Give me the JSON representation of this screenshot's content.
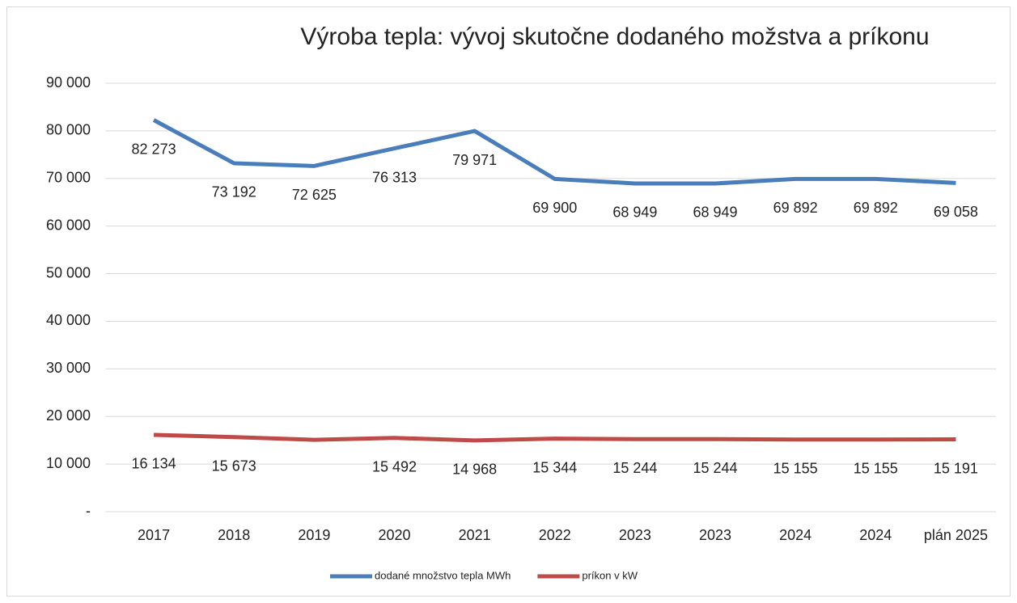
{
  "chart_data": {
    "type": "line",
    "title": "Výroba tepla: vývoj skutočne dodaného možstva a príkonu",
    "categories": [
      "2017",
      "2018",
      "2019",
      "2020",
      "2021",
      "2022",
      "2023",
      "2023",
      "2024",
      "2024",
      "plán 2025"
    ],
    "series": [
      {
        "name": "dodané množstvo tepla MWh",
        "color": "#4a7ebb",
        "values": [
          82273,
          73192,
          72625,
          76313,
          79971,
          69900,
          68949,
          68949,
          69892,
          69892,
          69058
        ],
        "value_labels": [
          "82 273",
          "73 192",
          "72 625",
          "76 313",
          "79 971",
          "69 900",
          "68 949",
          "68 949",
          "69 892",
          "69 892",
          "69 058"
        ]
      },
      {
        "name": "príkon v kW",
        "color": "#be4b48",
        "values": [
          16134,
          15673,
          15100,
          15492,
          14968,
          15344,
          15244,
          15244,
          15155,
          15155,
          15191
        ],
        "value_labels": [
          "16 134",
          "15 673",
          null,
          "15 492",
          "14 968",
          "15 344",
          "15 244",
          "15 244",
          "15 155",
          "15 155",
          "15 191"
        ]
      }
    ],
    "ylim": [
      0,
      90000
    ],
    "yticks": [
      {
        "value": 0,
        "label": "-"
      },
      {
        "value": 10000,
        "label": "10 000"
      },
      {
        "value": 20000,
        "label": "20 000"
      },
      {
        "value": 30000,
        "label": "30 000"
      },
      {
        "value": 40000,
        "label": "40 000"
      },
      {
        "value": 50000,
        "label": "50 000"
      },
      {
        "value": 60000,
        "label": "60 000"
      },
      {
        "value": 70000,
        "label": "70 000"
      },
      {
        "value": 80000,
        "label": "80 000"
      },
      {
        "value": 90000,
        "label": "90 000"
      }
    ],
    "grid": true,
    "legend": "bottom"
  }
}
